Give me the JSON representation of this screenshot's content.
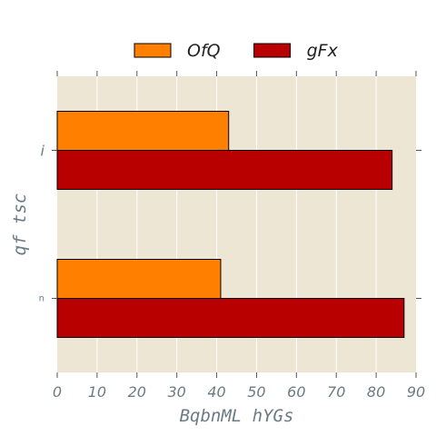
{
  "chart_data": {
    "type": "bar",
    "orientation": "horizontal",
    "categories": [
      "i",
      "n"
    ],
    "series": [
      {
        "name": "OfQ",
        "values": [
          43,
          41
        ],
        "color": "#ff7f00"
      },
      {
        "name": "gFx",
        "values": [
          84,
          87
        ],
        "color": "#b80000"
      }
    ],
    "xlabel": "BqbnML hYGs",
    "ylabel": "qf tsc",
    "xlim": [
      0,
      90
    ],
    "xticks": [
      0,
      10,
      20,
      30,
      40,
      50,
      60,
      70,
      80,
      90
    ],
    "grid": true,
    "legend_position": "top-center",
    "background_color": "#ede6d4",
    "grid_color": "#ffffff"
  }
}
